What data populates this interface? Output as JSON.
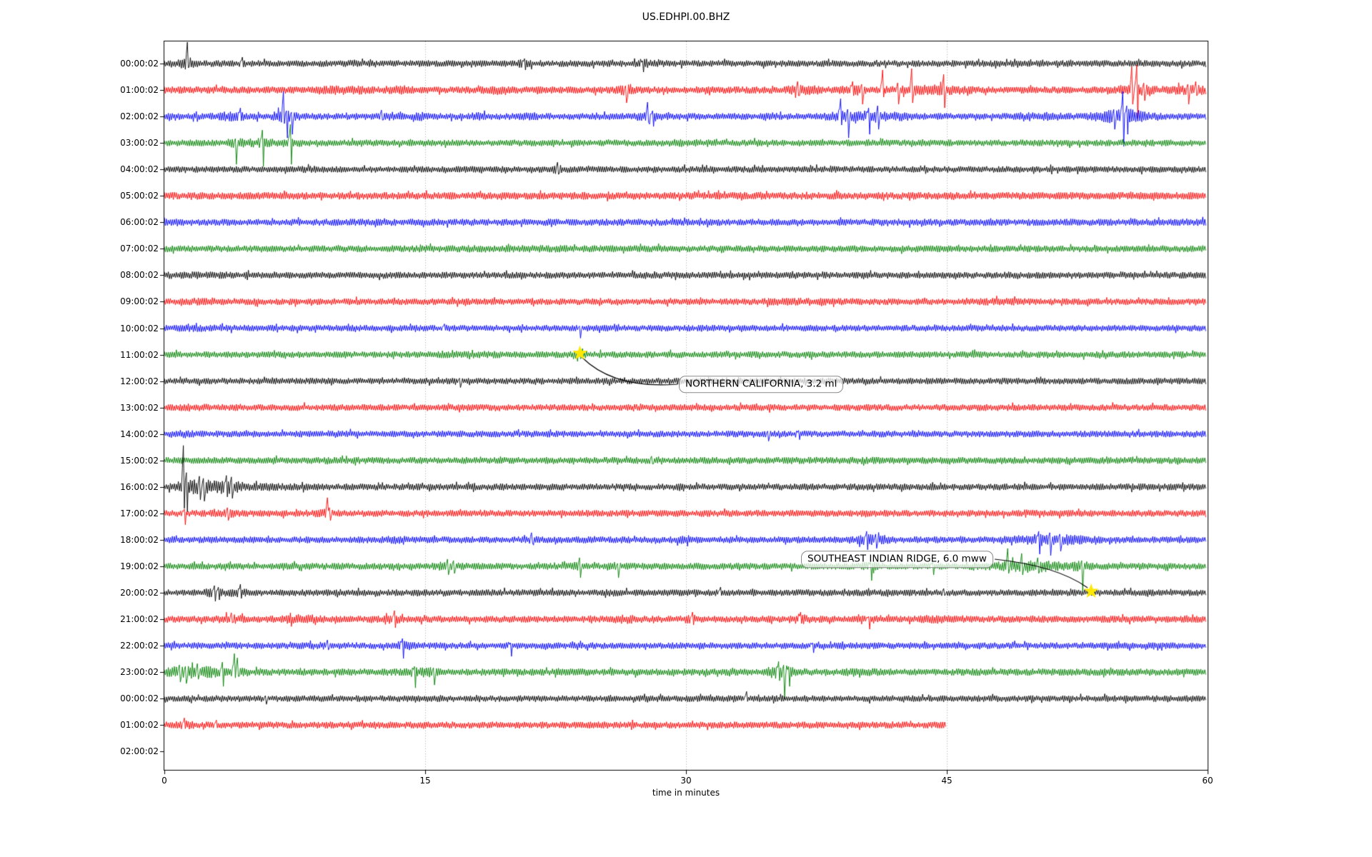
{
  "chart_data": {
    "type": "seismogram-dayplot",
    "title": "US.EDHPI.00.BHZ",
    "xlabel": "time in minutes",
    "x_range": [
      0,
      60
    ],
    "x_ticks": [
      0,
      15,
      30,
      45,
      60
    ],
    "grid_minutes": [
      15,
      30,
      45
    ],
    "grid_style": "dotted",
    "trace_color_cycle": [
      "#000000",
      "#ff0000",
      "#0000ff",
      "#008000"
    ],
    "event_marker": {
      "shape": "star",
      "color": "#ffe800"
    },
    "rows": [
      {
        "label": "00:00:02",
        "amp": 4.6,
        "events_twg": [
          [
            1.3,
            0.3,
            2.2
          ],
          [
            20.7,
            0.25,
            1.5
          ],
          [
            27.6,
            0.3,
            1.5
          ]
        ],
        "spikes_tud": [
          [
            1.35,
            30,
            6
          ],
          [
            4.5,
            9,
            5
          ],
          [
            20.7,
            7,
            9
          ],
          [
            27.5,
            4,
            12
          ]
        ]
      },
      {
        "label": "01:00:02",
        "amp": 5.0,
        "events_twg": [
          [
            10.5,
            0.8,
            1.5
          ],
          [
            13.5,
            0.5,
            1.4
          ],
          [
            19,
            0.4,
            1.4
          ],
          [
            26.5,
            0.3,
            1.7
          ],
          [
            36.7,
            0.6,
            1.7
          ],
          [
            39.8,
            0.5,
            1.6
          ],
          [
            44,
            1.3,
            1.7
          ],
          [
            55.9,
            0.6,
            1.9
          ],
          [
            59,
            0.8,
            1.5
          ]
        ],
        "spikes_tud": [
          [
            26.5,
            6,
            18
          ],
          [
            36.4,
            12,
            8
          ],
          [
            39.6,
            12,
            8
          ],
          [
            40.1,
            8,
            20
          ],
          [
            41.3,
            28,
            10
          ],
          [
            42.2,
            10,
            20
          ],
          [
            43,
            30,
            18
          ],
          [
            44.8,
            22,
            25
          ],
          [
            55.65,
            33,
            20
          ],
          [
            55.95,
            35,
            40
          ],
          [
            56.3,
            10,
            15
          ],
          [
            58.85,
            8,
            20
          ],
          [
            59.3,
            12,
            8
          ]
        ]
      },
      {
        "label": "02:00:02",
        "amp": 4.7,
        "events_twg": [
          [
            3.8,
            0.6,
            1.5
          ],
          [
            6.9,
            0.5,
            1.9
          ],
          [
            13,
            0.4,
            1.5
          ],
          [
            14.8,
            0.4,
            1.4
          ],
          [
            18,
            0.3,
            1.4
          ],
          [
            21,
            0.3,
            1.4
          ],
          [
            27.9,
            0.5,
            1.7
          ],
          [
            34.8,
            0.3,
            1.4
          ],
          [
            39,
            0.6,
            1.9
          ],
          [
            40.7,
            0.5,
            1.9
          ],
          [
            42.2,
            0.5,
            1.5
          ],
          [
            51,
            0.4,
            1.4
          ],
          [
            54.9,
            1.0,
            2.1
          ],
          [
            55.9,
            0.4,
            1.5
          ]
        ],
        "spikes_tud": [
          [
            4.4,
            12,
            6
          ],
          [
            6.85,
            35,
            10
          ],
          [
            7.0,
            8,
            30
          ],
          [
            7.3,
            6,
            25
          ],
          [
            12.5,
            9,
            5
          ],
          [
            27.8,
            20,
            8
          ],
          [
            28.1,
            8,
            14
          ],
          [
            38.9,
            25,
            12
          ],
          [
            39.3,
            10,
            30
          ],
          [
            40.5,
            12,
            25
          ],
          [
            41,
            15,
            18
          ],
          [
            54.6,
            10,
            18
          ],
          [
            55.1,
            35,
            42
          ],
          [
            55.35,
            15,
            25
          ]
        ]
      },
      {
        "label": "03:00:02",
        "amp": 4.6,
        "events_twg": [
          [
            4.1,
            0.4,
            1.6
          ],
          [
            5.6,
            0.5,
            1.5
          ],
          [
            7.2,
            0.4,
            1.5
          ],
          [
            30,
            1,
            1.2
          ]
        ],
        "spikes_tud": [
          [
            4.1,
            6,
            30
          ],
          [
            5.65,
            18,
            33
          ],
          [
            7.25,
            26,
            30
          ]
        ]
      },
      {
        "label": "04:00:02",
        "amp": 4.5,
        "events_twg": [
          [
            8.5,
            0.5,
            1.15
          ],
          [
            22.6,
            0.25,
            1.4
          ]
        ],
        "spikes_tud": [
          [
            22.6,
            10,
            7
          ]
        ]
      },
      {
        "label": "05:00:02",
        "amp": 5.2,
        "events_twg": [],
        "spikes_tud": []
      },
      {
        "label": "06:00:02",
        "amp": 4.9,
        "events_twg": [],
        "spikes_tud": []
      },
      {
        "label": "07:00:02",
        "amp": 4.7,
        "events_twg": [
          [
            20,
            4,
            1.1
          ]
        ],
        "spikes_tud": []
      },
      {
        "label": "08:00:02",
        "amp": 4.6,
        "events_twg": [
          [
            2,
            2,
            1.15
          ]
        ],
        "spikes_tud": []
      },
      {
        "label": "09:00:02",
        "amp": 4.6,
        "events_twg": [
          [
            2.5,
            0.8,
            1.25
          ],
          [
            37,
            1.5,
            1.2
          ],
          [
            48,
            1,
            1.15
          ]
        ],
        "spikes_tud": []
      },
      {
        "label": "10:00:02",
        "amp": 4.5,
        "events_twg": [
          [
            2,
            1.5,
            1.15
          ]
        ],
        "spikes_tud": [
          [
            16.1,
            6,
            3
          ],
          [
            23.9,
            3,
            14
          ]
        ]
      },
      {
        "label": "11:00:02",
        "amp": 4.6,
        "events_twg": [
          [
            19,
            2,
            1.15
          ],
          [
            23.9,
            0.3,
            1.4
          ]
        ],
        "spikes_tud": [
          [
            23.9,
            7,
            6
          ]
        ]
      },
      {
        "label": "12:00:02",
        "amp": 4.5,
        "events_twg": [],
        "spikes_tud": [
          [
            17,
            4,
            9
          ]
        ]
      },
      {
        "label": "13:00:02",
        "amp": 4.7,
        "events_twg": [
          [
            1.5,
            0.8,
            1.2
          ]
        ],
        "spikes_tud": []
      },
      {
        "label": "14:00:02",
        "amp": 4.6,
        "events_twg": [
          [
            1,
            0.5,
            1.3
          ]
        ],
        "spikes_tud": [
          [
            34.7,
            4,
            10
          ],
          [
            36.5,
            5,
            8
          ]
        ]
      },
      {
        "label": "15:00:02",
        "amp": 4.7,
        "events_twg": [
          [
            38,
            3,
            1.08
          ]
        ],
        "spikes_tud": [
          [
            28,
            6,
            5
          ]
        ]
      },
      {
        "label": "16:00:02",
        "amp": 4.7,
        "events_twg": [
          [
            1.2,
            0.35,
            2.4
          ],
          [
            2.2,
            0.7,
            2.1
          ],
          [
            3.7,
            0.5,
            1.9
          ],
          [
            5.5,
            1.5,
            1.25
          ]
        ],
        "spikes_tud": [
          [
            1.1,
            58,
            30
          ],
          [
            1.25,
            20,
            35
          ],
          [
            2.0,
            15,
            18
          ],
          [
            2.25,
            12,
            20
          ],
          [
            3.55,
            16,
            14
          ],
          [
            3.85,
            14,
            16
          ]
        ]
      },
      {
        "label": "17:00:02",
        "amp": 4.7,
        "events_twg": [
          [
            3.6,
            0.4,
            1.4
          ],
          [
            9.35,
            0.35,
            1.5
          ]
        ],
        "spikes_tud": [
          [
            1.15,
            6,
            16
          ],
          [
            3.6,
            8,
            10
          ],
          [
            9.35,
            22,
            12
          ],
          [
            9.5,
            8,
            10
          ]
        ]
      },
      {
        "label": "18:00:02",
        "amp": 4.7,
        "events_twg": [
          [
            13.3,
            0.4,
            1.35
          ],
          [
            21.1,
            0.25,
            1.4
          ],
          [
            30,
            0.3,
            1.45
          ],
          [
            40.6,
            0.6,
            1.7
          ],
          [
            50.9,
            1.3,
            1.9
          ]
        ],
        "spikes_tud": [
          [
            21.1,
            10,
            4
          ],
          [
            40.4,
            12,
            14
          ],
          [
            40.9,
            8,
            12
          ],
          [
            50.3,
            12,
            20
          ],
          [
            50.9,
            10,
            22
          ],
          [
            51.5,
            8,
            16
          ]
        ]
      },
      {
        "label": "19:00:02",
        "amp": 4.7,
        "events_twg": [
          [
            16.4,
            0.5,
            1.6
          ],
          [
            23.8,
            0.3,
            1.5
          ],
          [
            26,
            0.2,
            1.4
          ],
          [
            40.6,
            0.3,
            1.45
          ],
          [
            49.6,
            1.6,
            1.9
          ],
          [
            52.7,
            0.4,
            1.5
          ]
        ],
        "spikes_tud": [
          [
            16.3,
            10,
            12
          ],
          [
            16.6,
            8,
            10
          ],
          [
            23.85,
            12,
            16
          ],
          [
            26.05,
            4,
            16
          ],
          [
            40.6,
            6,
            20
          ],
          [
            44.2,
            6,
            12
          ],
          [
            48.5,
            25,
            10
          ],
          [
            49.3,
            18,
            12
          ],
          [
            50.2,
            12,
            10
          ],
          [
            52.75,
            8,
            35
          ]
        ]
      },
      {
        "label": "20:00:02",
        "amp": 4.6,
        "events_twg": [
          [
            2.9,
            0.5,
            1.5
          ],
          [
            4.3,
            0.4,
            1.45
          ],
          [
            26,
            0.3,
            1.25
          ]
        ],
        "spikes_tud": [
          [
            2.85,
            10,
            12
          ],
          [
            3.1,
            8,
            10
          ],
          [
            4.35,
            12,
            8
          ],
          [
            32,
            8,
            4
          ],
          [
            44.8,
            6,
            4
          ]
        ]
      },
      {
        "label": "21:00:02",
        "amp": 4.8,
        "events_twg": [
          [
            3.9,
            0.5,
            1.45
          ],
          [
            7,
            0.5,
            1.45
          ],
          [
            8.5,
            0.4,
            1.35
          ],
          [
            13.2,
            0.3,
            1.5
          ],
          [
            26.6,
            0.5,
            1.35
          ],
          [
            30.3,
            0.3,
            1.35
          ],
          [
            36.6,
            0.4,
            1.45
          ],
          [
            40.6,
            0.3,
            1.45
          ],
          [
            44.3,
            0.6,
            1.35
          ]
        ],
        "spikes_tud": [
          [
            3.85,
            9,
            5
          ],
          [
            13.25,
            12,
            12
          ],
          [
            30.4,
            10,
            8
          ],
          [
            36.6,
            10,
            6
          ],
          [
            40.5,
            4,
            14
          ]
        ]
      },
      {
        "label": "22:00:02",
        "amp": 4.6,
        "events_twg": [
          [
            9.5,
            0.5,
            1.25
          ],
          [
            13.7,
            0.3,
            1.45
          ],
          [
            19.9,
            0.2,
            1.35
          ]
        ],
        "spikes_tud": [
          [
            9.4,
            8,
            6
          ],
          [
            13.7,
            10,
            18
          ],
          [
            19.9,
            4,
            15
          ],
          [
            37.3,
            4,
            10
          ]
        ]
      },
      {
        "label": "23:00:02",
        "amp": 5.0,
        "events_twg": [
          [
            0.9,
            0.5,
            1.7
          ],
          [
            1.8,
            0.6,
            1.7
          ],
          [
            2.8,
            0.4,
            1.5
          ],
          [
            4,
            0.3,
            1.7
          ],
          [
            14.5,
            0.5,
            1.45
          ],
          [
            15.4,
            0.3,
            1.45
          ],
          [
            35.5,
            0.6,
            2.0
          ],
          [
            40,
            0.5,
            1.25
          ]
        ],
        "spikes_tud": [
          [
            0.85,
            10,
            14
          ],
          [
            1.2,
            8,
            16
          ],
          [
            1.9,
            12,
            10
          ],
          [
            3.35,
            14,
            20
          ],
          [
            4.0,
            26,
            8
          ],
          [
            4.2,
            20,
            6
          ],
          [
            14.4,
            8,
            22
          ],
          [
            15.5,
            6,
            18
          ],
          [
            35.3,
            15,
            12
          ],
          [
            35.6,
            10,
            38
          ],
          [
            35.9,
            8,
            20
          ]
        ]
      },
      {
        "label": "00:00:02",
        "amp": 4.5,
        "events_twg": [],
        "spikes_tud": [
          [
            5.8,
            4,
            8
          ],
          [
            33.5,
            10,
            4
          ]
        ]
      },
      {
        "label": "01:00:02",
        "amp": 4.8,
        "end_min": 45,
        "events_twg": [
          [
            1.2,
            0.3,
            1.35
          ]
        ],
        "spikes_tud": [
          [
            1.15,
            10,
            5
          ],
          [
            3,
            7,
            4
          ]
        ]
      },
      {
        "label": "02:00:02",
        "amp": 0,
        "no_data": true,
        "events_twg": [],
        "spikes_tud": []
      }
    ],
    "annotations": [
      {
        "label": "NORTHERN CALIFORNIA, 3.2 ml",
        "row": 11,
        "minute": 23.9,
        "box_x": 950,
        "box_y": 538,
        "connect_side": "left"
      },
      {
        "label": "SOUTHEAST INDIAN RIDGE, 6.0 mww",
        "row": 20,
        "minute": 53.3,
        "box_x": 1121,
        "box_y": 783,
        "connect_side": "right"
      }
    ]
  }
}
